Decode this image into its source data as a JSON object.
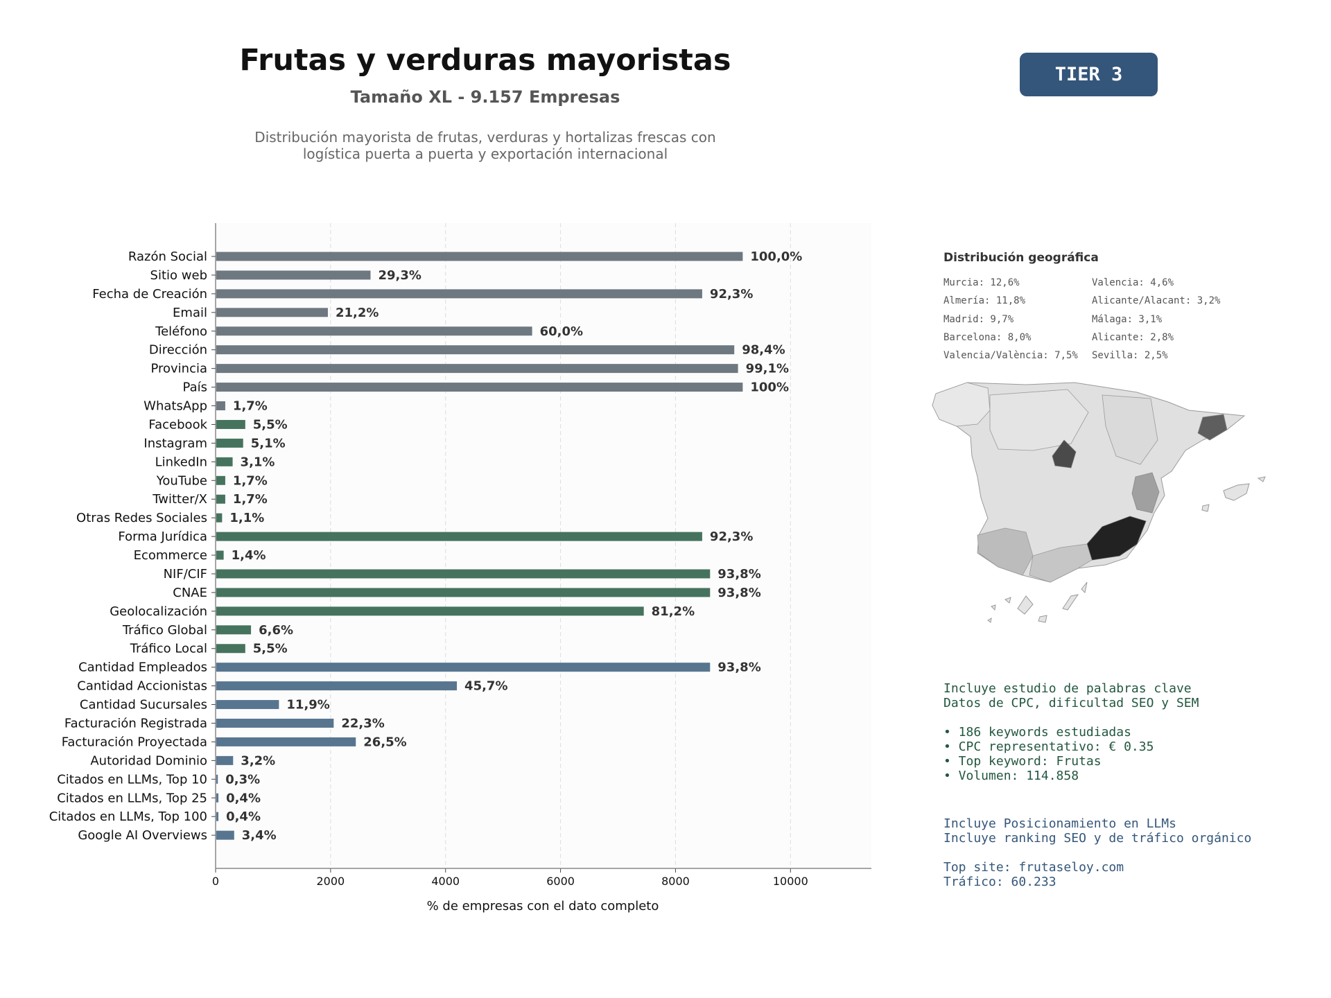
{
  "header": {
    "title": "Frutas y verduras mayoristas",
    "subtitle": "Tamaño XL - 9.157 Empresas",
    "description_line1": "Distribución mayorista de frutas, verduras y hortalizas frescas con",
    "description_line2": "logística puerta a puerta y exportación internacional",
    "tier_label": "TIER 3"
  },
  "chart_data": {
    "type": "bar",
    "orientation": "horizontal",
    "xlabel": "% de empresas con el dato completo",
    "xlim": [
      0,
      11450
    ],
    "xticks": [
      0,
      2000,
      4000,
      6000,
      8000,
      10000
    ],
    "grid": "vertical dashed",
    "total": 9157,
    "categories": [
      "Razón Social",
      "Sitio web",
      "Fecha de Creación",
      "Email",
      "Teléfono",
      "Dirección",
      "Provincia",
      "País",
      "WhatsApp",
      "Facebook",
      "Instagram",
      "LinkedIn",
      "YouTube",
      "Twitter/X",
      "Otras Redes Sociales",
      "Forma Jurídica",
      "Ecommerce",
      "NIF/CIF",
      "CNAE",
      "Geolocalización",
      "Tráfico Global",
      "Tráfico Local",
      "Cantidad Empleados",
      "Cantidad Accionistas",
      "Cantidad Sucursales",
      "Facturación Registrada",
      "Facturación Proyectada",
      "Autoridad Dominio",
      "Citados en LLMs, Top 10",
      "Citados en LLMs, Top 25",
      "Citados en LLMs, Top 100",
      "Google AI Overviews"
    ],
    "values": [
      9157,
      2683,
      8452,
      1941,
      5494,
      9010,
      9075,
      9157,
      156,
      504,
      467,
      284,
      156,
      156,
      101,
      8452,
      128,
      8589,
      8589,
      7436,
      604,
      504,
      8589,
      4185,
      1090,
      2042,
      2427,
      293,
      27,
      37,
      37,
      311
    ],
    "labels": [
      "100,0%",
      "29,3%",
      "92,3%",
      "21,2%",
      "60,0%",
      "98,4%",
      "99,1%",
      "100%",
      "1,7%",
      "5,5%",
      "5,1%",
      "3,1%",
      "1,7%",
      "1,7%",
      "1,1%",
      "92,3%",
      "1,4%",
      "93,8%",
      "93,8%",
      "81,2%",
      "6,6%",
      "5,5%",
      "93,8%",
      "45,7%",
      "11,9%",
      "22,3%",
      "26,5%",
      "3,2%",
      "0,3%",
      "0,4%",
      "0,4%",
      "3,4%"
    ],
    "groups": [
      "gray",
      "gray",
      "gray",
      "gray",
      "gray",
      "gray",
      "gray",
      "gray",
      "gray",
      "green",
      "green",
      "green",
      "green",
      "green",
      "green",
      "green",
      "green",
      "green",
      "green",
      "green",
      "green",
      "green",
      "blue",
      "blue",
      "blue",
      "blue",
      "blue",
      "blue",
      "blue",
      "blue",
      "blue",
      "blue"
    ],
    "colors": {
      "gray": "#6e7880",
      "green": "#46735e",
      "blue": "#587590"
    }
  },
  "geo": {
    "title": "Distribución geográfica",
    "items": [
      "Murcia: 12,6%",
      "Valencia: 4,6%",
      "Almería: 11,8%",
      "Alicante/Alacant: 3,2%",
      "Madrid: 9,7%",
      "Málaga: 3,1%",
      "Barcelona: 8,0%",
      "Alicante: 2,8%",
      "Valencia/València: 7,5%",
      "Sevilla: 2,5%"
    ]
  },
  "seo": {
    "line1": "Incluye estudio de palabras clave",
    "line2": "Datos de CPC, dificultad SEO y SEM",
    "bullet1": "• 186 keywords estudiadas",
    "bullet2": "• CPC representativo: € 0.35",
    "bullet3": "• Top keyword: Frutas",
    "bullet4": "• Volumen: 114.858"
  },
  "llm": {
    "line1": "Incluye Posicionamiento en LLMs",
    "line2": "Incluye ranking SEO y de tráfico orgánico",
    "line3": "Top site: frutaseloy.com",
    "line4": "Tráfico: 60.233"
  }
}
